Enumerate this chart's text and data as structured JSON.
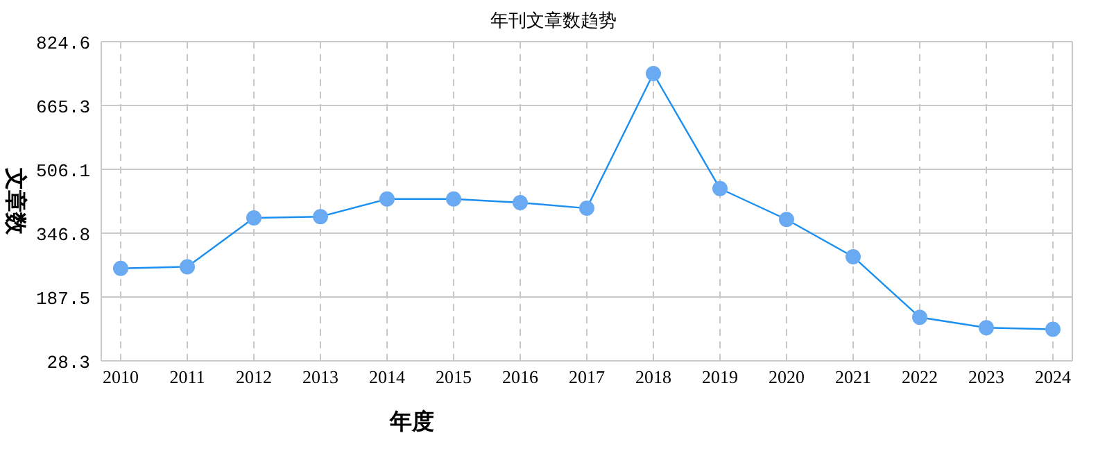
{
  "chart_data": {
    "type": "line",
    "title": "年刊文章数趋势",
    "xlabel": "年度",
    "ylabel": "文章数",
    "categories": [
      "2010",
      "2011",
      "2012",
      "2013",
      "2014",
      "2015",
      "2016",
      "2017",
      "2018",
      "2019",
      "2020",
      "2021",
      "2022",
      "2023",
      "2024"
    ],
    "series": [
      {
        "color": "#1a8ff0",
        "values": [
          259,
          263,
          385,
          388,
          432,
          432,
          423,
          409,
          745,
          458,
          381,
          288,
          137,
          111,
          107
        ]
      }
    ],
    "ylim": [
      28.3,
      824.6
    ],
    "yticks": [
      28.3,
      187.5,
      346.8,
      506.1,
      665.3,
      824.6
    ],
    "grid": true,
    "marker": "circle",
    "line_style": "solid"
  }
}
